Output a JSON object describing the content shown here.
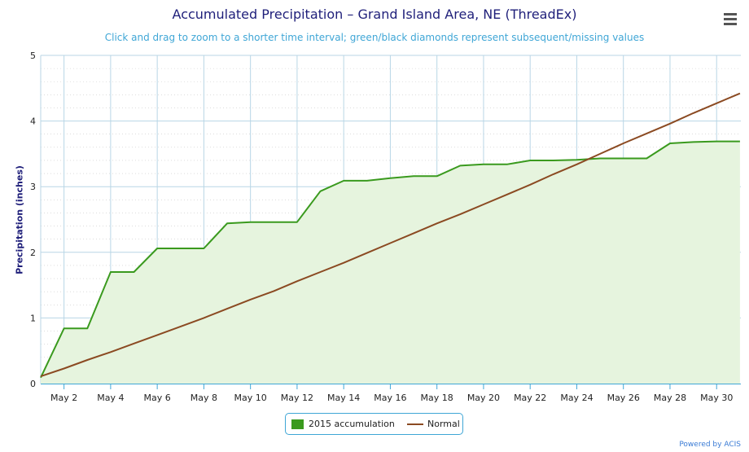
{
  "chart_data": {
    "type": "area",
    "title": "Accumulated Precipitation – Grand Island Area, NE (ThreadEx)",
    "subtitle": "Click and drag to zoom to a shorter time interval; green/black diamonds represent subsequent/missing values",
    "xlabel": "",
    "ylabel": "Precipitation (inches)",
    "ylim": [
      0,
      5
    ],
    "yticks": [
      "0",
      "1",
      "2",
      "3",
      "4",
      "5"
    ],
    "x_tick_labels": [
      "May 2",
      "May 4",
      "May 6",
      "May 8",
      "May 10",
      "May 12",
      "May 14",
      "May 16",
      "May 18",
      "May 20",
      "May 22",
      "May 24",
      "May 26",
      "May 28",
      "May 30"
    ],
    "x_tick_days": [
      2,
      4,
      6,
      8,
      10,
      12,
      14,
      16,
      18,
      20,
      22,
      24,
      26,
      28,
      30
    ],
    "xlim_days": [
      1,
      31
    ],
    "grid": true,
    "legend_position": "bottom-center",
    "series": [
      {
        "name": "2015 accumulation",
        "type": "area",
        "color": "#3a9a1e",
        "fill_color": "#e6f4de",
        "days": [
          1,
          2,
          3,
          4,
          5,
          6,
          7,
          8,
          9,
          10,
          11,
          12,
          13,
          14,
          15,
          16,
          17,
          18,
          19,
          20,
          21,
          22,
          23,
          24,
          25,
          26,
          27,
          28,
          29,
          30,
          31
        ],
        "values": [
          0.09,
          0.84,
          0.84,
          1.7,
          1.7,
          2.06,
          2.06,
          2.06,
          2.44,
          2.46,
          2.46,
          2.46,
          2.93,
          3.09,
          3.09,
          3.13,
          3.16,
          3.16,
          3.32,
          3.34,
          3.34,
          3.4,
          3.4,
          3.41,
          3.43,
          3.43,
          3.43,
          3.66,
          3.68,
          3.69,
          3.69
        ]
      },
      {
        "name": "Normal",
        "type": "line",
        "color": "#8b4a22",
        "days": [
          1,
          2,
          3,
          4,
          5,
          6,
          7,
          8,
          9,
          10,
          11,
          12,
          13,
          14,
          15,
          16,
          17,
          18,
          19,
          20,
          21,
          22,
          23,
          24,
          25,
          26,
          27,
          28,
          29,
          30,
          31
        ],
        "values": [
          0.11,
          0.23,
          0.36,
          0.48,
          0.61,
          0.74,
          0.87,
          1.0,
          1.14,
          1.28,
          1.41,
          1.56,
          1.7,
          1.84,
          1.99,
          2.14,
          2.29,
          2.44,
          2.58,
          2.73,
          2.88,
          3.03,
          3.19,
          3.34,
          3.5,
          3.66,
          3.81,
          3.96,
          4.12,
          4.27,
          4.42
        ]
      }
    ]
  },
  "menu": {
    "icon": "hamburger-menu-icon"
  },
  "credits": {
    "text": "Powered by ACIS"
  }
}
